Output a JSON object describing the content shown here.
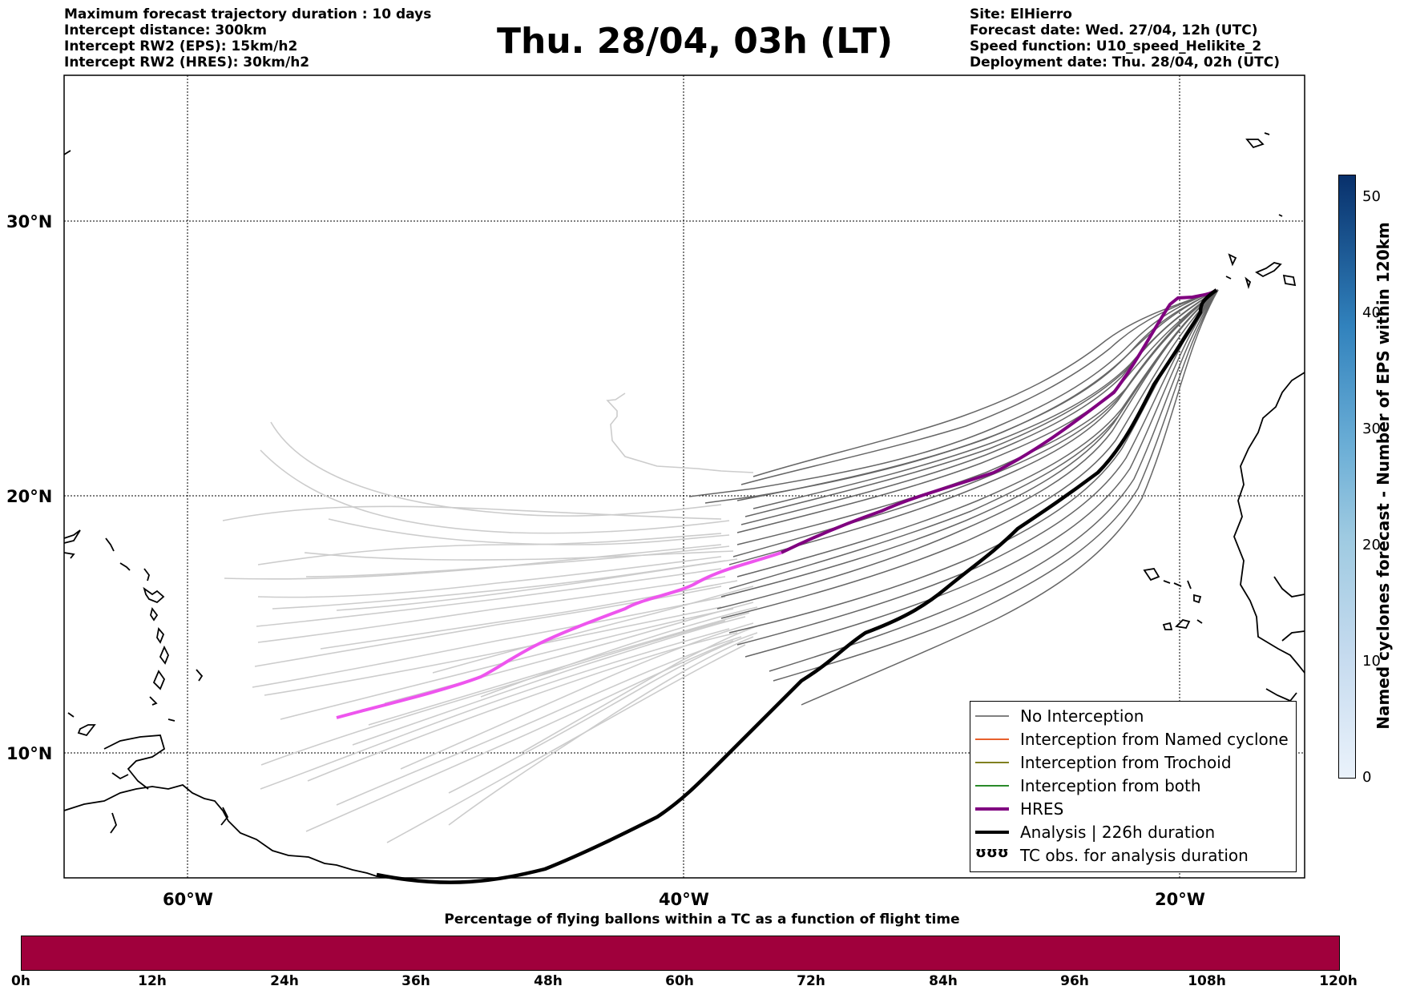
{
  "header_left": [
    "Maximum forecast trajectory duration : 10 days",
    "Intercept distance: 300km",
    "Intercept RW2 (EPS):  15km/h2",
    "Intercept RW2 (HRES): 30km/h2"
  ],
  "title": "Thu. 28/04, 03h (LT)",
  "header_right": [
    "Site: ElHierro",
    "Forecast date: Wed. 27/04, 12h (UTC)",
    "Speed function: U10_speed_Helikite_2",
    "Deployment date: Thu. 28/04, 02h (UTC)"
  ],
  "map": {
    "lat_labels": [
      "30°N",
      "20°N",
      "10°N"
    ],
    "lon_labels": [
      "60°W",
      "40°W",
      "20°W"
    ],
    "colors": {
      "eps_near": "#666666",
      "eps_far": "#cccccc",
      "hres": "#800080",
      "hres_far": "#ee55ee",
      "analysis": "#000000",
      "coast": "#000000"
    }
  },
  "legend": {
    "items": [
      {
        "label": "No Interception",
        "color": "#808080"
      },
      {
        "label": "Interception from Named cyclone",
        "color": "#e8602c"
      },
      {
        "label": "Interception from Trochoid",
        "color": "#808020"
      },
      {
        "label": "Interception from both",
        "color": "#2a8a2a"
      },
      {
        "label": "HRES",
        "color": "#800080"
      },
      {
        "label": "Analysis | 226h duration",
        "color": "#000000"
      },
      {
        "label": "TC obs. for analysis duration",
        "symbol": "ʊʊʊ"
      }
    ]
  },
  "colorbar_vertical": {
    "label": "Named cyclones forecast - Number of EPS within 120km",
    "ticks": [
      "0",
      "10",
      "20",
      "30",
      "40",
      "50"
    ]
  },
  "colorbar_horizontal": {
    "title": "Percentage of flying ballons within a TC as a function of flight time",
    "ticks": [
      "0h",
      "12h",
      "24h",
      "36h",
      "48h",
      "60h",
      "72h",
      "84h",
      "96h",
      "108h",
      "120h"
    ],
    "color": "#a0003c"
  }
}
